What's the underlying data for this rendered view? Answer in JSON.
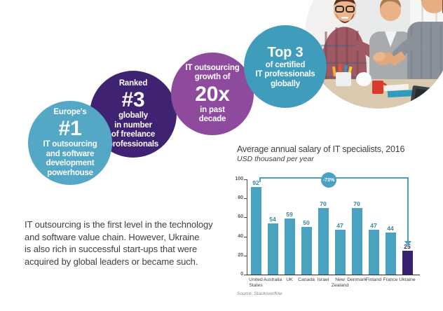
{
  "bubbles": [
    {
      "top": "Europe's",
      "big": "#1",
      "bottom": "IT outsourcing\nand software\ndevelopment\npowerhouse",
      "color": "#54a7c5"
    },
    {
      "top": "Ranked",
      "big": "#3",
      "bottom": "globally\nin number\nof freelance\nprofessionals",
      "color": "#402273"
    },
    {
      "top": "IT outsourcing\ngrowth of",
      "big": "20x",
      "bottom": "in past\ndecade",
      "color": "#8e4b9e"
    },
    {
      "top": "",
      "big": "Top 3",
      "bottom": "of certified\nIT professionals\nglobally",
      "color": "#3f9dbb"
    }
  ],
  "photo": {
    "alt": "office-team-handshake-photo"
  },
  "intro": {
    "text": "IT outsourcing is the first level in the technology\nand software value chain. However, Ukraine\nis also rich in successful start-ups that were\nacquired by global leaders or became such."
  },
  "chart_data": {
    "type": "bar",
    "title": "Average annual salary of IT specialists, 2016",
    "subtitle": "USD thousand per year",
    "categories": [
      "United States",
      "Australia",
      "UK",
      "Canada",
      "Israel",
      "New Zealand",
      "Denmark",
      "Finland",
      "France",
      "Ukraine"
    ],
    "values": [
      92,
      54,
      59,
      50,
      70,
      47,
      70,
      47,
      44,
      25
    ],
    "ylim": [
      0,
      100
    ],
    "yticks": [
      0,
      20,
      40,
      60,
      80,
      100
    ],
    "grid": false,
    "legend": "none",
    "annotation": "-73%",
    "annotation_note": "difference between United States and Ukraine salary",
    "source": "Source: Stackoverflow",
    "bar_color": "#4aa2c0",
    "highlight_index": 9,
    "highlight_color": "#392071",
    "value_label_color": "#3c85a7",
    "highlight_label_color": "#2e2167",
    "bracket_color": "#4aa2c0"
  }
}
